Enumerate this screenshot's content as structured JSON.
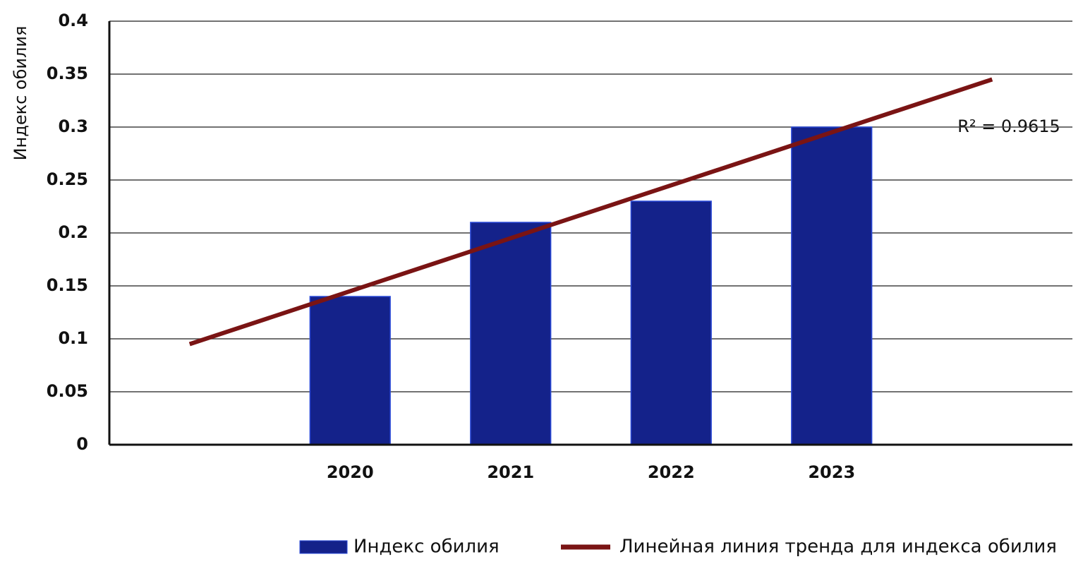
{
  "chart_data": {
    "type": "bar",
    "y_label": "Индекс обилия",
    "categories": [
      null,
      "2020",
      "2021",
      "2022",
      "2023",
      null
    ],
    "series": [
      {
        "name": "Индекс обилия",
        "type": "bar",
        "color": "#14228a",
        "values": [
          null,
          0.14,
          0.21,
          0.23,
          0.3,
          null
        ]
      },
      {
        "name": "Линейная линия тренда для индекса обилия",
        "type": "line",
        "color": "#7a1414",
        "values": [
          0.095,
          0.145,
          0.195,
          0.245,
          0.295,
          0.345
        ]
      }
    ],
    "annotation": "R² = 0.9615",
    "ylim": [
      0,
      0.4
    ],
    "yticks": [
      0,
      0.05,
      0.1,
      0.15,
      0.2,
      0.25,
      0.3,
      0.35,
      0.4
    ],
    "grid": true,
    "legend": "bottom"
  }
}
